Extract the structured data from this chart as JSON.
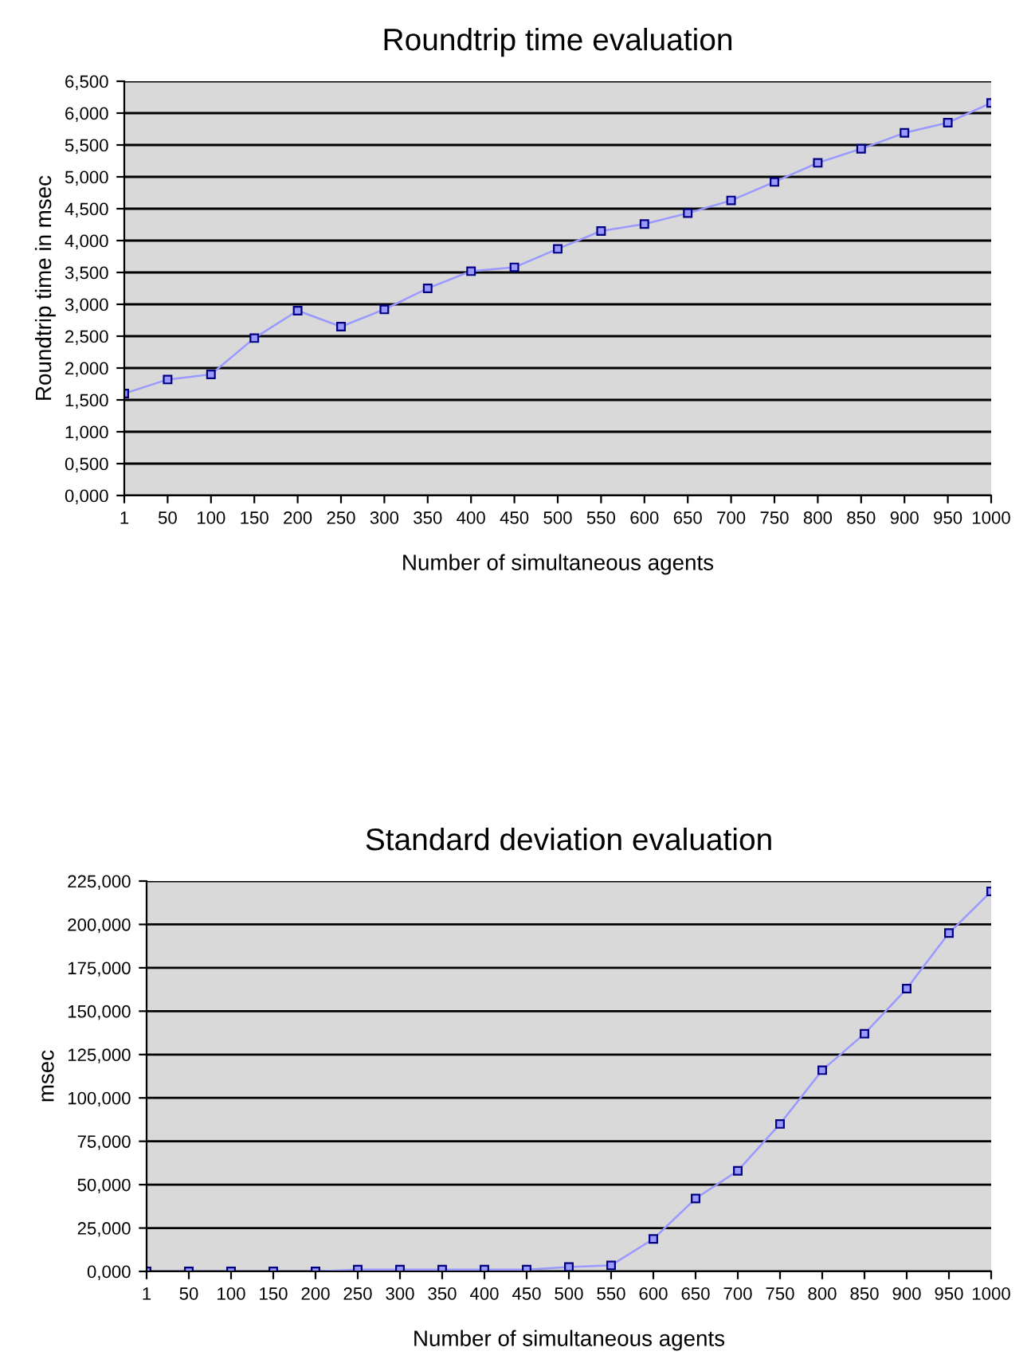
{
  "chart_data": [
    {
      "type": "line",
      "title": "Roundtrip time evaluation",
      "xlabel": "Number of simultaneous agents",
      "ylabel": "Roundtrip time in msec",
      "categories": [
        "1",
        "50",
        "100",
        "150",
        "200",
        "250",
        "300",
        "350",
        "400",
        "450",
        "500",
        "550",
        "600",
        "650",
        "700",
        "750",
        "800",
        "850",
        "900",
        "950",
        "1000"
      ],
      "series": [
        {
          "color": "#9999ff",
          "values": [
            1.6,
            1.82,
            1.9,
            2.47,
            2.9,
            2.65,
            2.92,
            3.25,
            3.52,
            3.58,
            3.87,
            4.15,
            4.26,
            4.43,
            4.63,
            4.92,
            5.22,
            5.44,
            5.69,
            5.85,
            6.16
          ]
        }
      ],
      "ylim": [
        0,
        6.5
      ],
      "yticks": [
        {
          "value": 0,
          "label": "0,000"
        },
        {
          "value": 0.5,
          "label": "0,500"
        },
        {
          "value": 1,
          "label": "1,000"
        },
        {
          "value": 1.5,
          "label": "1,500"
        },
        {
          "value": 2,
          "label": "2,000"
        },
        {
          "value": 2.5,
          "label": "2,500"
        },
        {
          "value": 3,
          "label": "3,000"
        },
        {
          "value": 3.5,
          "label": "3,500"
        },
        {
          "value": 4,
          "label": "4,000"
        },
        {
          "value": 4.5,
          "label": "4,500"
        },
        {
          "value": 5,
          "label": "5,000"
        },
        {
          "value": 5.5,
          "label": "5,500"
        },
        {
          "value": 6,
          "label": "6,000"
        },
        {
          "value": 6.5,
          "label": "6,500"
        }
      ],
      "grid": "y",
      "legend": false,
      "marker": "square",
      "line_style": "solid"
    },
    {
      "type": "line",
      "title": "Standard deviation evaluation",
      "xlabel": "Number of simultaneous agents",
      "ylabel": "msec",
      "categories": [
        "1",
        "50",
        "100",
        "150",
        "200",
        "250",
        "300",
        "350",
        "400",
        "450",
        "500",
        "550",
        "600",
        "650",
        "700",
        "750",
        "800",
        "850",
        "900",
        "950",
        "1000"
      ],
      "series": [
        {
          "color": "#9999ff",
          "values": [
            0,
            0,
            0,
            0,
            0,
            1,
            1,
            1,
            1,
            1,
            2.5,
            3.5,
            18.7,
            42,
            58,
            85,
            116,
            137,
            163,
            195,
            219
          ]
        }
      ],
      "ylim": [
        0,
        225
      ],
      "yticks": [
        {
          "value": 0,
          "label": "0,000"
        },
        {
          "value": 25,
          "label": "25,000"
        },
        {
          "value": 50,
          "label": "50,000"
        },
        {
          "value": 75,
          "label": "75,000"
        },
        {
          "value": 100,
          "label": "100,000"
        },
        {
          "value": 125,
          "label": "125,000"
        },
        {
          "value": 150,
          "label": "150,000"
        },
        {
          "value": 175,
          "label": "175,000"
        },
        {
          "value": 200,
          "label": "200,000"
        },
        {
          "value": 225,
          "label": "225,000"
        }
      ],
      "grid": "y",
      "legend": false,
      "marker": "square",
      "line_style": "solid"
    }
  ]
}
